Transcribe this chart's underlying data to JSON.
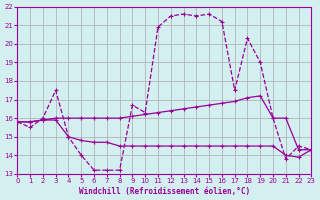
{
  "background_color": "#d4eff0",
  "grid_color": "#aaaaaa",
  "line_color": "#990099",
  "xlabel": "Windchill (Refroidissement éolien,°C)",
  "xlim": [
    0,
    23
  ],
  "ylim": [
    13,
    22
  ],
  "yticks": [
    13,
    14,
    15,
    16,
    17,
    18,
    19,
    20,
    21,
    22
  ],
  "xticks": [
    0,
    1,
    2,
    3,
    4,
    5,
    6,
    7,
    8,
    9,
    10,
    11,
    12,
    13,
    14,
    15,
    16,
    17,
    18,
    19,
    20,
    21,
    22,
    23
  ],
  "line1_x": [
    0,
    1,
    2,
    3,
    4,
    5,
    6,
    7,
    8,
    9,
    10,
    11,
    12,
    13,
    14,
    15,
    16,
    17,
    18,
    19,
    20,
    21,
    22,
    23
  ],
  "line1_y": [
    15.8,
    15.5,
    16.0,
    17.5,
    15.0,
    14.0,
    13.2,
    13.2,
    13.2,
    16.7,
    16.3,
    20.9,
    21.5,
    21.6,
    21.5,
    21.6,
    21.2,
    17.5,
    20.3,
    19.0,
    16.0,
    13.8,
    14.5,
    14.3
  ],
  "line2_x": [
    0,
    1,
    2,
    3,
    4,
    5,
    6,
    7,
    8,
    9,
    10,
    11,
    12,
    13,
    14,
    15,
    16,
    17,
    18,
    19,
    20,
    21,
    22,
    23
  ],
  "line2_y": [
    15.8,
    15.8,
    15.9,
    16.0,
    16.0,
    16.0,
    16.0,
    16.0,
    16.0,
    16.1,
    16.2,
    16.3,
    16.4,
    16.5,
    16.6,
    16.7,
    16.8,
    16.9,
    17.1,
    17.2,
    16.0,
    16.0,
    14.3,
    14.3
  ],
  "line3_x": [
    0,
    1,
    2,
    3,
    4,
    5,
    6,
    7,
    8,
    9,
    10,
    11,
    12,
    13,
    14,
    15,
    16,
    17,
    18,
    19,
    20,
    21,
    22,
    23
  ],
  "line3_y": [
    15.8,
    15.8,
    15.9,
    15.9,
    15.0,
    14.8,
    14.7,
    14.7,
    14.5,
    14.5,
    14.5,
    14.5,
    14.5,
    14.5,
    14.5,
    14.5,
    14.5,
    14.5,
    14.5,
    14.5,
    14.5,
    14.0,
    13.9,
    14.3
  ]
}
